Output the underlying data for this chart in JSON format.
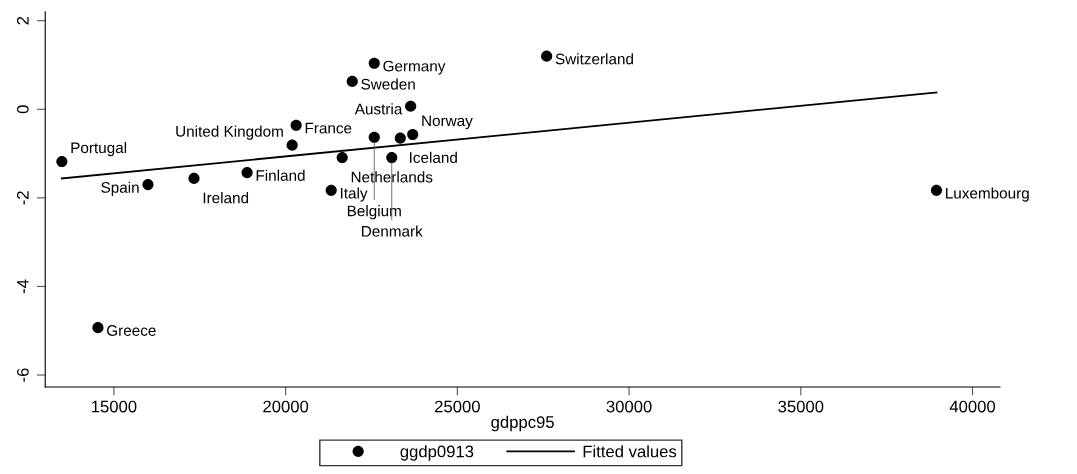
{
  "chart_data": {
    "type": "scatter",
    "xlabel": "gdppc95",
    "xlim": [
      13000,
      40800
    ],
    "ylim": [
      -6.27,
      2.2
    ],
    "xticks": [
      15000,
      20000,
      25000,
      30000,
      35000,
      40000
    ],
    "yticks": [
      -6,
      -4,
      -2,
      0,
      2
    ],
    "grid": false,
    "legend": "bottom",
    "series": [
      {
        "name": "ggdp0913",
        "marker": "circle",
        "color": "#000000",
        "x": [
          13484,
          14534,
          15991,
          17332,
          18878,
          20190,
          20306,
          21327,
          21647,
          21939,
          22580,
          22580,
          23338,
          23700,
          23090,
          23640,
          27600,
          38950
        ],
        "values": [
          -1.18,
          -4.93,
          -1.7,
          -1.56,
          -1.43,
          -0.81,
          -0.36,
          -1.83,
          -1.09,
          0.63,
          1.04,
          -0.63,
          -0.65,
          -0.57,
          -1.09,
          0.07,
          1.2,
          -1.83
        ]
      },
      {
        "name": "Fitted values",
        "type": "line",
        "color": "#000000",
        "line_style": "solid",
        "x": [
          13484,
          38950
        ],
        "values": [
          -1.56,
          0.38
        ]
      }
    ],
    "annotations": [
      {
        "text": "Portugal",
        "x": 13484,
        "y": -1.18
      },
      {
        "text": "Greece",
        "x": 14534,
        "y": -4.93
      },
      {
        "text": "Spain",
        "x": 15991,
        "y": -1.7
      },
      {
        "text": "Ireland",
        "x": 17332,
        "y": -1.56
      },
      {
        "text": "Finland",
        "x": 18878,
        "y": -1.43
      },
      {
        "text": "United Kingdom",
        "x": 20190,
        "y": -0.81
      },
      {
        "text": "France",
        "x": 20306,
        "y": -0.36
      },
      {
        "text": "Italy",
        "x": 21327,
        "y": -1.83
      },
      {
        "text": "Netherlands",
        "x": 21647,
        "y": -1.09
      },
      {
        "text": "Sweden",
        "x": 21939,
        "y": 0.63
      },
      {
        "text": "Germany",
        "x": 22580,
        "y": 1.04
      },
      {
        "text": "Belgium",
        "x": 22580,
        "y": -0.63
      },
      {
        "text": "Iceland",
        "x": 23338,
        "y": -0.65
      },
      {
        "text": "Norway",
        "x": 23700,
        "y": -0.57
      },
      {
        "text": "Denmark",
        "x": 23090,
        "y": -1.09
      },
      {
        "text": "Austria",
        "x": 23640,
        "y": 0.07
      },
      {
        "text": "Switzerland",
        "x": 27600,
        "y": 1.2
      },
      {
        "text": "Luxembourg",
        "x": 38950,
        "y": -1.83
      }
    ]
  }
}
